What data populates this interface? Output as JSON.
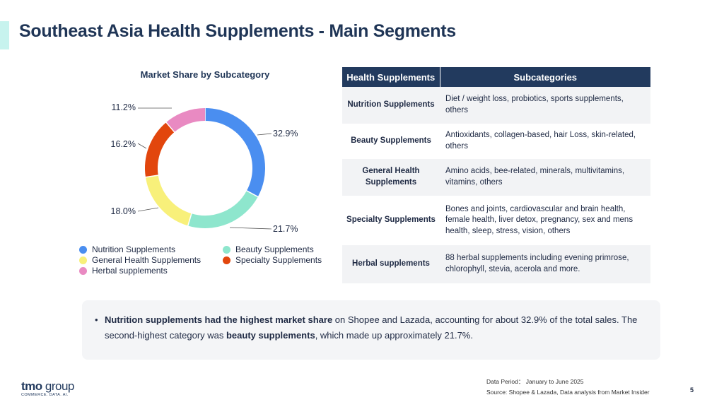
{
  "page": {
    "title": "Southeast Asia Health Supplements - Main Segments",
    "page_number": "5"
  },
  "chart_data": {
    "type": "pie",
    "title": "Market Share by Subcategory",
    "donut": true,
    "categories": [
      "Nutrition Supplements",
      "Beauty Supplements",
      "General Health Supplements",
      "Specialty Supplements",
      "Herbal supplements"
    ],
    "values": [
      32.9,
      21.7,
      18.0,
      16.2,
      11.2
    ],
    "labels": [
      "32.9%",
      "21.7%",
      "18.0%",
      "16.2%",
      "11.2%"
    ],
    "colors": [
      "#4a8ef0",
      "#8ee6cd",
      "#f8f07a",
      "#e2460d",
      "#e98ac2"
    ],
    "legend": [
      "Nutrition Supplements",
      "Beauty Supplements",
      "General Health Supplements",
      "Specialty Supplements",
      "Herbal supplements"
    ],
    "legend_position": "bottom"
  },
  "table": {
    "headers": [
      "Health Supplements",
      "Subcategories"
    ],
    "rows": [
      {
        "category": "Nutrition Supplements",
        "subcategories": "Diet / weight loss, probiotics, sports supplements, others"
      },
      {
        "category": "Beauty Supplements",
        "subcategories": "Antioxidants, collagen-based, hair Loss, skin-related, others"
      },
      {
        "category": "General Health Supplements",
        "subcategories": "Amino acids, bee-related, minerals, multivitamins, vitamins, others"
      },
      {
        "category": "Specialty Supplements",
        "subcategories": "Bones and joints, cardiovascular and brain health, female health, liver detox, pregnancy, sex and mens health, sleep, stress, vision, others"
      },
      {
        "category": "Herbal supplements",
        "subcategories": "88 herbal supplements including evening primrose, chlorophyll, stevia, acerola and more."
      }
    ]
  },
  "note": {
    "bullet": "•",
    "part1_bold": "Nutrition supplements had the highest market share",
    "part2": " on Shopee and Lazada, accounting for about 32.9% of the total sales. The second-highest category was ",
    "part3_bold": "beauty supplements",
    "part4": ", which made up approximately 21.7%."
  },
  "footer": {
    "period": "Data Period： January to June 2025",
    "source": "Source: Shopee & Lazada, Data analysis from Market Insider"
  },
  "logo": {
    "brand": "tmo",
    "brand_suffix": " group",
    "tagline": "COMMERCE. DATA. AI."
  }
}
